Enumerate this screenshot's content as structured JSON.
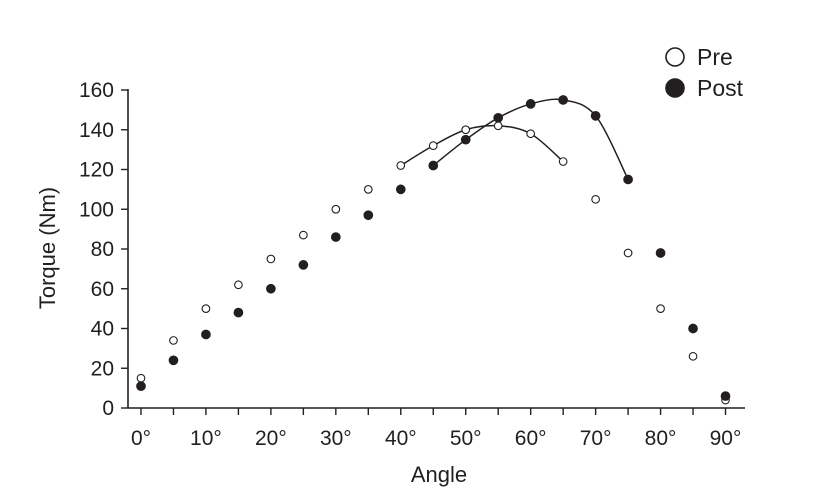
{
  "chart_data": {
    "type": "scatter",
    "title": "",
    "xlabel": "Angle",
    "ylabel": "Torque (Nm)",
    "xlim": [
      -2,
      93
    ],
    "ylim": [
      0,
      160
    ],
    "x_ticks": [
      0,
      10,
      20,
      30,
      40,
      50,
      60,
      70,
      80,
      90
    ],
    "x_tick_labels": [
      "0°",
      "10°",
      "20°",
      "30°",
      "40°",
      "50°",
      "60°",
      "70°",
      "80°",
      "90°"
    ],
    "y_ticks": [
      0,
      20,
      40,
      60,
      80,
      100,
      120,
      140,
      160
    ],
    "y_tick_labels": [
      "0",
      "20",
      "40",
      "60",
      "80",
      "100",
      "120",
      "140",
      "160"
    ],
    "grid": false,
    "legend_position": "top-right",
    "series": [
      {
        "name": "Pre",
        "marker": "open-circle",
        "x": [
          0,
          5,
          10,
          15,
          20,
          25,
          30,
          35,
          40,
          45,
          50,
          55,
          60,
          65,
          70,
          75,
          80,
          85,
          90
        ],
        "y": [
          15,
          34,
          50,
          62,
          75,
          87,
          100,
          110,
          122,
          132,
          140,
          142,
          138,
          124,
          105,
          78,
          50,
          26,
          4
        ],
        "fit_curve_x_range": [
          40,
          65
        ]
      },
      {
        "name": "Post",
        "marker": "filled-circle",
        "x": [
          0,
          5,
          10,
          15,
          20,
          25,
          30,
          35,
          40,
          45,
          50,
          55,
          60,
          65,
          70,
          75,
          80,
          85,
          90
        ],
        "y": [
          11,
          24,
          37,
          48,
          60,
          72,
          86,
          97,
          110,
          122,
          135,
          146,
          153,
          155,
          147,
          115,
          78,
          40,
          6
        ],
        "fit_curve_x_range": [
          45,
          75
        ]
      }
    ],
    "colors": {
      "ink": "#231f20",
      "background": "#ffffff"
    }
  }
}
